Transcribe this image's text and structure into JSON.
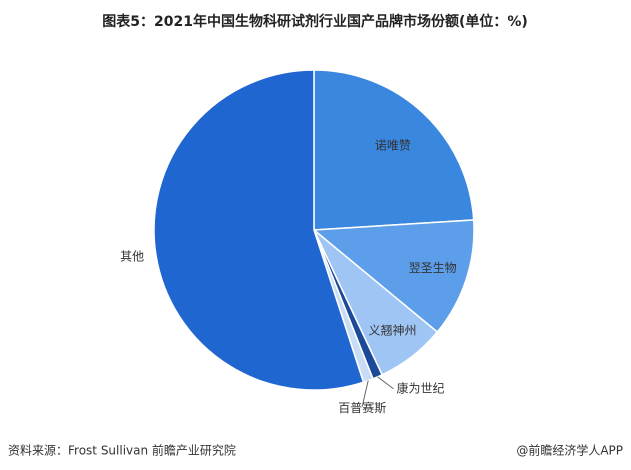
{
  "chart_data": {
    "type": "pie",
    "title": "图表5：2021年中国生物科研试剂行业国产品牌市场份额(单位：%)",
    "categories": [
      "诺唯赞",
      "翌圣生物",
      "义翘神州",
      "康为世纪",
      "百普赛斯",
      "其他"
    ],
    "values": [
      24,
      12,
      7,
      1,
      1,
      55
    ],
    "colors": [
      "#3a87e0",
      "#5c9ee9",
      "#9fc5f4",
      "#1b4a98",
      "#c9dcf5",
      "#1f66d1"
    ]
  },
  "footer": {
    "source": "资料来源：Frost Sullivan 前瞻产业研究院",
    "brand": "@前瞻经济学人APP"
  }
}
